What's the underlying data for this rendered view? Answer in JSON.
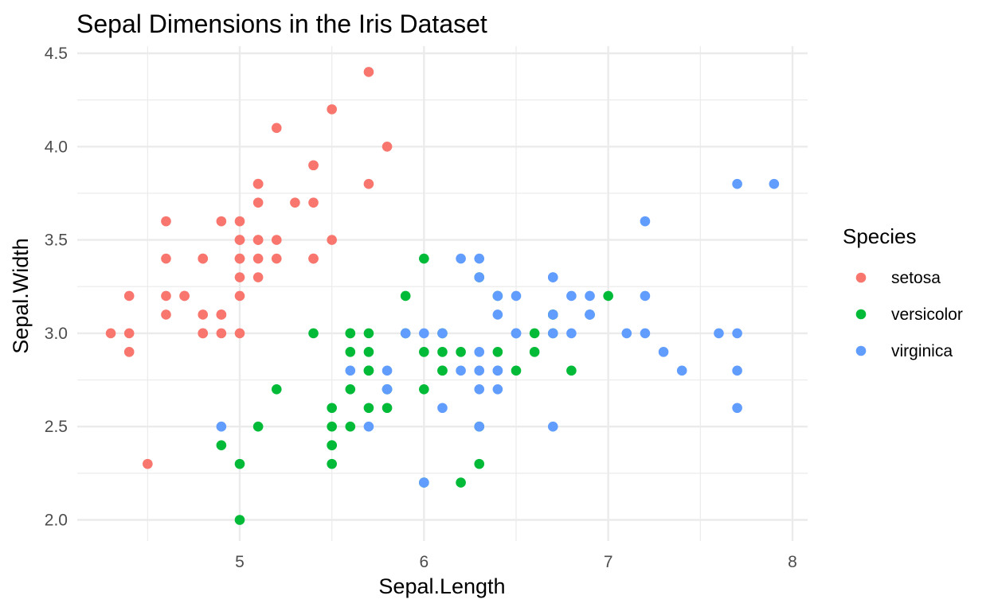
{
  "chart_data": {
    "type": "scatter",
    "title": "Sepal Dimensions in the Iris Dataset",
    "xlabel": "Sepal.Length",
    "ylabel": "Sepal.Width",
    "xlim": [
      4.3,
      7.9
    ],
    "ylim": [
      2.0,
      4.4
    ],
    "x_ticks": [
      5,
      6,
      7,
      8
    ],
    "y_ticks": [
      2.0,
      2.5,
      3.0,
      3.5,
      4.0,
      4.5
    ],
    "grid": true,
    "legend": {
      "title": "Species",
      "position": "right"
    },
    "series": [
      {
        "name": "setosa",
        "color": "#F8766D",
        "points": [
          [
            5.1,
            3.5
          ],
          [
            4.9,
            3.0
          ],
          [
            4.7,
            3.2
          ],
          [
            4.6,
            3.1
          ],
          [
            5.0,
            3.6
          ],
          [
            5.4,
            3.9
          ],
          [
            4.6,
            3.4
          ],
          [
            5.0,
            3.4
          ],
          [
            4.4,
            2.9
          ],
          [
            4.9,
            3.1
          ],
          [
            5.4,
            3.7
          ],
          [
            4.8,
            3.4
          ],
          [
            4.8,
            3.0
          ],
          [
            4.3,
            3.0
          ],
          [
            5.8,
            4.0
          ],
          [
            5.7,
            4.4
          ],
          [
            5.4,
            3.9
          ],
          [
            5.1,
            3.5
          ],
          [
            5.7,
            3.8
          ],
          [
            5.1,
            3.8
          ],
          [
            5.4,
            3.4
          ],
          [
            5.1,
            3.7
          ],
          [
            4.6,
            3.6
          ],
          [
            5.1,
            3.3
          ],
          [
            4.8,
            3.4
          ],
          [
            5.0,
            3.0
          ],
          [
            5.0,
            3.4
          ],
          [
            5.2,
            3.5
          ],
          [
            5.2,
            3.4
          ],
          [
            4.7,
            3.2
          ],
          [
            4.8,
            3.1
          ],
          [
            5.4,
            3.4
          ],
          [
            5.2,
            4.1
          ],
          [
            5.5,
            4.2
          ],
          [
            4.9,
            3.1
          ],
          [
            5.0,
            3.2
          ],
          [
            5.5,
            3.5
          ],
          [
            4.9,
            3.6
          ],
          [
            4.4,
            3.0
          ],
          [
            5.1,
            3.4
          ],
          [
            5.0,
            3.5
          ],
          [
            4.5,
            2.3
          ],
          [
            4.4,
            3.2
          ],
          [
            5.0,
            3.5
          ],
          [
            5.1,
            3.8
          ],
          [
            4.8,
            3.0
          ],
          [
            5.1,
            3.8
          ],
          [
            4.6,
            3.2
          ],
          [
            5.3,
            3.7
          ],
          [
            5.0,
            3.3
          ]
        ]
      },
      {
        "name": "versicolor",
        "color": "#00BA38",
        "points": [
          [
            7.0,
            3.2
          ],
          [
            6.4,
            3.2
          ],
          [
            6.9,
            3.1
          ],
          [
            5.5,
            2.3
          ],
          [
            6.5,
            2.8
          ],
          [
            5.7,
            2.8
          ],
          [
            6.3,
            3.3
          ],
          [
            4.9,
            2.4
          ],
          [
            6.6,
            2.9
          ],
          [
            5.2,
            2.7
          ],
          [
            5.0,
            2.0
          ],
          [
            5.9,
            3.0
          ],
          [
            6.0,
            2.2
          ],
          [
            6.1,
            2.9
          ],
          [
            5.6,
            2.9
          ],
          [
            6.7,
            3.1
          ],
          [
            5.6,
            3.0
          ],
          [
            5.8,
            2.7
          ],
          [
            6.2,
            2.2
          ],
          [
            5.6,
            2.5
          ],
          [
            5.9,
            3.2
          ],
          [
            6.1,
            2.8
          ],
          [
            6.3,
            2.5
          ],
          [
            6.1,
            2.8
          ],
          [
            6.4,
            2.9
          ],
          [
            6.6,
            3.0
          ],
          [
            6.8,
            2.8
          ],
          [
            6.7,
            3.0
          ],
          [
            6.0,
            2.9
          ],
          [
            5.7,
            2.6
          ],
          [
            5.5,
            2.4
          ],
          [
            5.5,
            2.4
          ],
          [
            5.8,
            2.7
          ],
          [
            6.0,
            2.7
          ],
          [
            5.4,
            3.0
          ],
          [
            6.0,
            3.4
          ],
          [
            6.7,
            3.1
          ],
          [
            6.3,
            2.3
          ],
          [
            5.6,
            3.0
          ],
          [
            5.5,
            2.5
          ],
          [
            5.5,
            2.6
          ],
          [
            6.1,
            3.0
          ],
          [
            5.8,
            2.6
          ],
          [
            5.0,
            2.3
          ],
          [
            5.6,
            2.7
          ],
          [
            5.7,
            3.0
          ],
          [
            5.7,
            2.9
          ],
          [
            6.2,
            2.9
          ],
          [
            5.1,
            2.5
          ],
          [
            5.7,
            2.8
          ]
        ]
      },
      {
        "name": "virginica",
        "color": "#619CFF",
        "points": [
          [
            6.3,
            3.3
          ],
          [
            5.8,
            2.7
          ],
          [
            7.1,
            3.0
          ],
          [
            6.3,
            2.9
          ],
          [
            6.5,
            3.0
          ],
          [
            7.6,
            3.0
          ],
          [
            4.9,
            2.5
          ],
          [
            7.3,
            2.9
          ],
          [
            6.7,
            2.5
          ],
          [
            7.2,
            3.6
          ],
          [
            6.5,
            3.2
          ],
          [
            6.4,
            2.7
          ],
          [
            6.8,
            3.0
          ],
          [
            5.7,
            2.5
          ],
          [
            5.8,
            2.8
          ],
          [
            6.4,
            3.2
          ],
          [
            6.5,
            3.0
          ],
          [
            7.7,
            3.8
          ],
          [
            7.7,
            2.6
          ],
          [
            6.0,
            2.2
          ],
          [
            6.9,
            3.2
          ],
          [
            5.6,
            2.8
          ],
          [
            7.7,
            2.8
          ],
          [
            6.3,
            2.7
          ],
          [
            6.7,
            3.3
          ],
          [
            7.2,
            3.2
          ],
          [
            6.2,
            2.8
          ],
          [
            6.1,
            3.0
          ],
          [
            6.4,
            2.8
          ],
          [
            7.2,
            3.0
          ],
          [
            7.4,
            2.8
          ],
          [
            7.9,
            3.8
          ],
          [
            6.4,
            2.8
          ],
          [
            6.3,
            2.8
          ],
          [
            6.1,
            2.6
          ],
          [
            7.7,
            3.0
          ],
          [
            6.3,
            3.4
          ],
          [
            6.4,
            3.1
          ],
          [
            6.0,
            3.0
          ],
          [
            6.9,
            3.1
          ],
          [
            6.7,
            3.1
          ],
          [
            6.9,
            3.1
          ],
          [
            5.8,
            2.7
          ],
          [
            6.8,
            3.2
          ],
          [
            6.7,
            3.3
          ],
          [
            6.7,
            3.0
          ],
          [
            6.3,
            2.5
          ],
          [
            6.5,
            3.0
          ],
          [
            6.2,
            3.4
          ],
          [
            5.9,
            3.0
          ]
        ]
      }
    ]
  }
}
